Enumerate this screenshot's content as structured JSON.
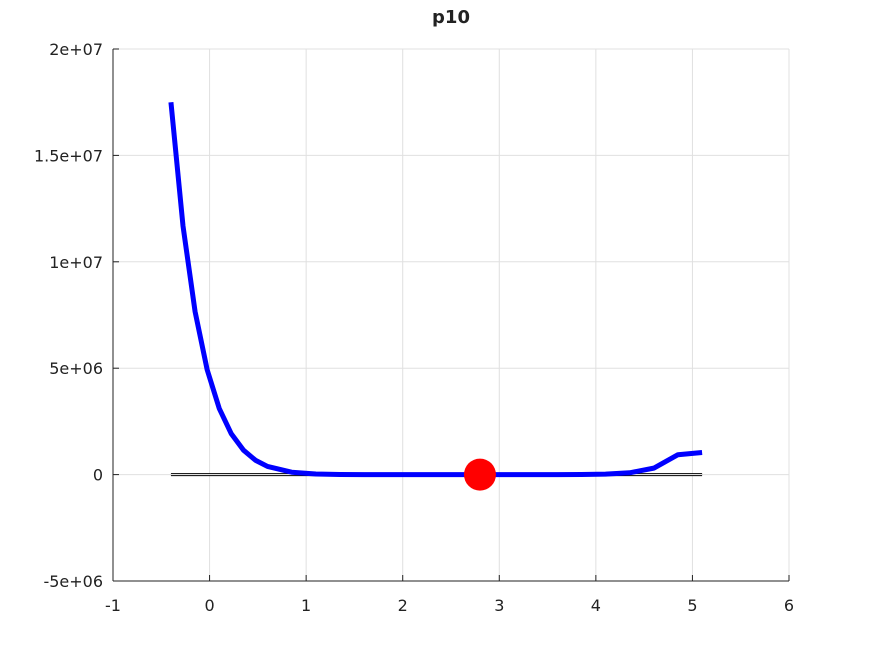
{
  "chart_data": {
    "type": "line",
    "title": "p10",
    "x": [
      -0.4,
      -0.275,
      -0.15,
      -0.025,
      0.1,
      0.225,
      0.35,
      0.475,
      0.6,
      0.85,
      1.1,
      1.35,
      1.6,
      1.85,
      2.1,
      2.35,
      2.6,
      2.85,
      3.1,
      3.35,
      3.6,
      3.85,
      4.1,
      4.35,
      4.6,
      4.85,
      5.1
    ],
    "series": [
      {
        "color": "#0000ff",
        "values": [
          17500000,
          11680000,
          7660000,
          4930000,
          3110000,
          1918000,
          1154000,
          676000,
          384000,
          112000,
          27200,
          5260,
          736,
          63,
          2,
          0,
          0,
          0,
          1,
          36,
          472,
          3660,
          20000,
          85450,
          303600,
          935000,
          1040000
        ]
      }
    ],
    "baseline": {
      "color": "#000000",
      "x": [
        -0.4,
        5.1
      ],
      "values": [
        0,
        0
      ]
    },
    "marker": {
      "color": "#ff0000",
      "x": 2.8,
      "y": 0
    },
    "xlim": [
      -1,
      6
    ],
    "xticks": [
      -1,
      0,
      1,
      2,
      3,
      4,
      5,
      6
    ],
    "ylim": [
      -5000000,
      20000000
    ],
    "yticks": [
      {
        "value": -5000000,
        "label": "-5e+06"
      },
      0,
      {
        "value": 5000000,
        "label": "5e+06"
      },
      {
        "value": 10000000,
        "label": "1e+07"
      },
      {
        "value": 15000000,
        "label": "1.5e+07"
      },
      {
        "value": 20000000,
        "label": "2e+07"
      }
    ],
    "grid": true
  }
}
